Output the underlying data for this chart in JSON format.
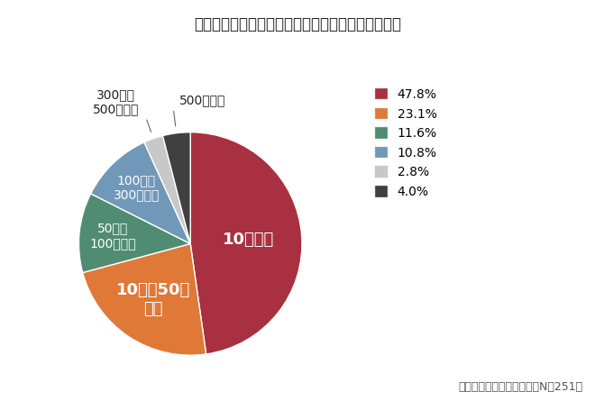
{
  "title": "あなたの会社の年間の採用人数をお答えください。",
  "footnote": "マンパワーグループ調べ（N＝251）",
  "slices": [
    {
      "label": "10人未満",
      "pct": 47.8,
      "color": "#a83040",
      "text_color": "white",
      "inside": true,
      "r_label": 0.52
    },
    {
      "label": "10人〜50人\n未満",
      "pct": 23.1,
      "color": "#e07838",
      "text_color": "white",
      "inside": true,
      "r_label": 0.6
    },
    {
      "label": "50人〜\n100人未満",
      "pct": 11.6,
      "color": "#508c72",
      "text_color": "white",
      "inside": true,
      "r_label": 0.7
    },
    {
      "label": "100人〜\n300人未満",
      "pct": 10.8,
      "color": "#7098b8",
      "text_color": "white",
      "inside": true,
      "r_label": 0.7
    },
    {
      "label": "300人〜\n500人未満",
      "pct": 2.8,
      "color": "#c8c8c8",
      "text_color": "#333333",
      "inside": false,
      "r_label": 0.0
    },
    {
      "label": "500人以上",
      "pct": 4.0,
      "color": "#404040",
      "text_color": "#333333",
      "inside": false,
      "r_label": 0.0
    }
  ],
  "legend_labels": [
    "47.8%",
    "23.1%",
    "11.6%",
    "10.8%",
    "2.8%",
    "4.0%"
  ],
  "legend_colors": [
    "#a83040",
    "#e07838",
    "#508c72",
    "#7098b8",
    "#c8c8c8",
    "#404040"
  ],
  "bg_color": "#ffffff",
  "title_fontsize": 12,
  "slice_fontsize_large": 13,
  "slice_fontsize_small": 10,
  "legend_fontsize": 11,
  "footnote_fontsize": 9
}
